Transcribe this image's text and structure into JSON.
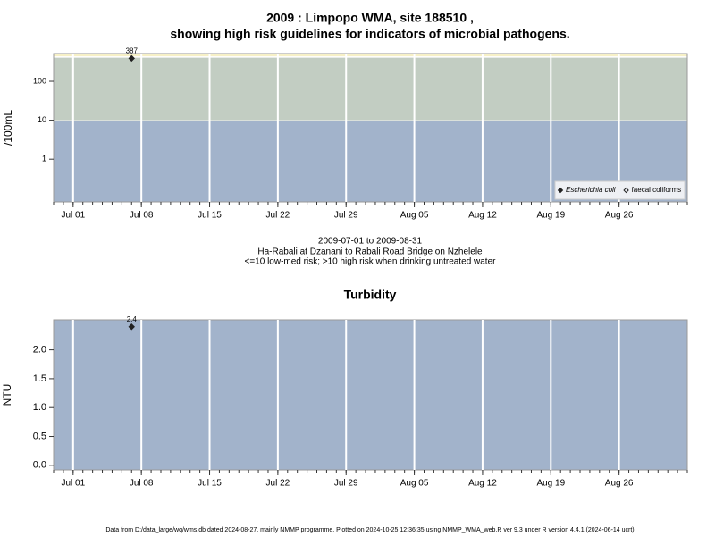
{
  "chart_data": [
    {
      "type": "scatter",
      "title": [
        "2009 : Limpopo WMA, site 188510 ,",
        "showing high risk guidelines for indicators of microbial pathogens."
      ],
      "ylabel": "/100mL",
      "log_y": true,
      "xlim": [
        "2009-06-29",
        "2009-09-02"
      ],
      "xticks": [
        {
          "value": "2009-07-01",
          "label": "Jul 01"
        },
        {
          "value": "2009-07-08",
          "label": "Jul 08"
        },
        {
          "value": "2009-07-15",
          "label": "Jul 15"
        },
        {
          "value": "2009-07-22",
          "label": "Jul 22"
        },
        {
          "value": "2009-07-29",
          "label": "Jul 29"
        },
        {
          "value": "2009-08-05",
          "label": "Aug 05"
        },
        {
          "value": "2009-08-12",
          "label": "Aug 12"
        },
        {
          "value": "2009-08-19",
          "label": "Aug 19"
        },
        {
          "value": "2009-08-26",
          "label": "Aug 26"
        }
      ],
      "ylim": [
        0.08,
        515
      ],
      "yticks": [
        1,
        10,
        100
      ],
      "bands": [
        {
          "to": 10,
          "color": "#a2b3cb"
        },
        {
          "to": 420,
          "color": "#c2cdc2"
        }
      ],
      "background": "#f6f0c6",
      "legend": "lower right",
      "series": [
        {
          "name": "Escherichia coli",
          "color": "#222222",
          "marker": "filled-diamond",
          "x": [
            "2009-07-07"
          ],
          "values": [
            387
          ]
        },
        {
          "name": "faecal coliforms",
          "color": "#222222",
          "marker": "open-diamond",
          "x": [],
          "values": []
        }
      ]
    },
    {
      "type": "scatter",
      "title": "Turbidity",
      "ylabel": "NTU",
      "log_y": false,
      "xlim": [
        "2009-06-29",
        "2009-09-02"
      ],
      "xticks": [
        {
          "value": "2009-07-01",
          "label": "Jul 01"
        },
        {
          "value": "2009-07-08",
          "label": "Jul 08"
        },
        {
          "value": "2009-07-15",
          "label": "Jul 15"
        },
        {
          "value": "2009-07-22",
          "label": "Jul 22"
        },
        {
          "value": "2009-07-29",
          "label": "Jul 29"
        },
        {
          "value": "2009-08-05",
          "label": "Aug 05"
        },
        {
          "value": "2009-08-12",
          "label": "Aug 12"
        },
        {
          "value": "2009-08-19",
          "label": "Aug 19"
        },
        {
          "value": "2009-08-26",
          "label": "Aug 26"
        }
      ],
      "ylim": [
        -0.08,
        2.52
      ],
      "yticks": [
        {
          "value": 0,
          "label": "0.0"
        },
        0.5,
        {
          "value": 1,
          "label": "1.0"
        },
        1.5,
        {
          "value": 2,
          "label": "2.0"
        }
      ],
      "bands": [],
      "background": "#a2b3cb",
      "series": [
        {
          "name": "Turbidity",
          "color": "#222222",
          "marker": "filled-diamond",
          "x": [
            "2009-07-07"
          ],
          "values": [
            2.4
          ]
        }
      ]
    }
  ],
  "caption": [
    "2009-07-01 to 2009-08-31",
    "Ha-Rabali at Dzanani to Rabali Road Bridge on Nzhelele",
    "<=10 low-med risk; >10 high risk when drinking untreated water"
  ],
  "footer": "Data from D:/data_large/wq/wms.db dated 2024-08-27, mainly NMMP programme. Plotted on 2024-10-25 12:36:35 using NMMP_WMA_web.R ver 9.3 under R version 4.4.1 (2024-06-14 ucrt)"
}
